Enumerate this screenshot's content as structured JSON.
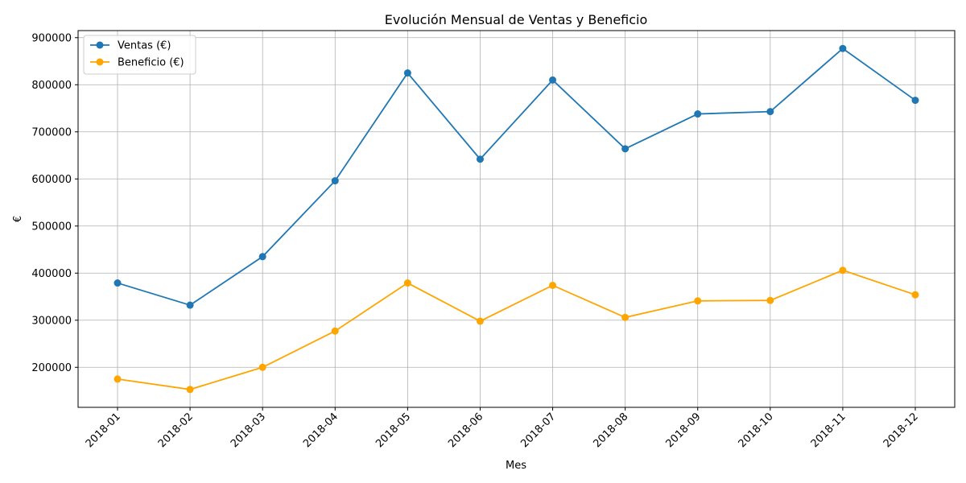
{
  "chart_data": {
    "type": "line",
    "title": "Evolución Mensual de Ventas y Beneficio",
    "xlabel": "Mes",
    "ylabel": "€",
    "categories": [
      "2018-01",
      "2018-02",
      "2018-03",
      "2018-04",
      "2018-05",
      "2018-06",
      "2018-07",
      "2018-08",
      "2018-09",
      "2018-10",
      "2018-11",
      "2018-12"
    ],
    "ylim": [
      115000,
      915000
    ],
    "yticks": [
      200000,
      300000,
      400000,
      500000,
      600000,
      700000,
      800000,
      900000
    ],
    "grid": true,
    "legend_position": "top-left",
    "series": [
      {
        "name": "Ventas (€)",
        "color": "#1f77b4",
        "marker": "circle",
        "values": [
          379000,
          332000,
          435000,
          596000,
          825000,
          642000,
          810000,
          664000,
          738000,
          743000,
          877000,
          767000
        ]
      },
      {
        "name": "Beneficio (€)",
        "color": "#ffa500",
        "marker": "circle",
        "values": [
          175000,
          153000,
          200000,
          277000,
          379000,
          298000,
          374000,
          306000,
          341000,
          342000,
          406000,
          354000
        ]
      }
    ]
  }
}
